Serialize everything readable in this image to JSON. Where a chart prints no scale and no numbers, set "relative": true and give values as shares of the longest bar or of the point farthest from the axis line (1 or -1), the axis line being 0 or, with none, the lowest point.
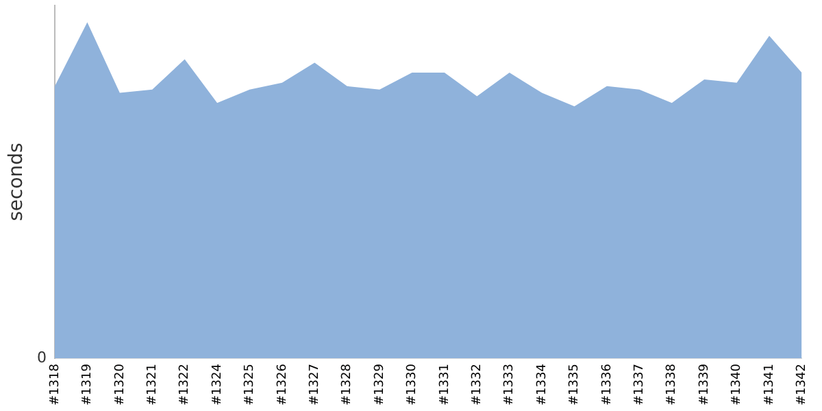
{
  "chart_data": {
    "type": "area",
    "ylabel": "seconds",
    "relative": true,
    "annotations": [
      "0"
    ],
    "grid": false,
    "legend": false,
    "categories": [
      "#1318",
      "#1319",
      "#1320",
      "#1321",
      "#1322",
      "#1324",
      "#1325",
      "#1326",
      "#1327",
      "#1328",
      "#1329",
      "#1330",
      "#1331",
      "#1332",
      "#1333",
      "#1334",
      "#1335",
      "#1336",
      "#1337",
      "#1338",
      "#1339",
      "#1340",
      "#1341",
      "#1342"
    ],
    "series": [
      {
        "color": "#8fb2db",
        "values": [
          0.81,
          1,
          0.79,
          0.8,
          0.89,
          0.76,
          0.8,
          0.82,
          0.88,
          0.81,
          0.8,
          0.85,
          0.85,
          0.78,
          0.85,
          0.79,
          0.75,
          0.81,
          0.8,
          0.76,
          0.83,
          0.82,
          0.96,
          0.85
        ]
      }
    ]
  }
}
